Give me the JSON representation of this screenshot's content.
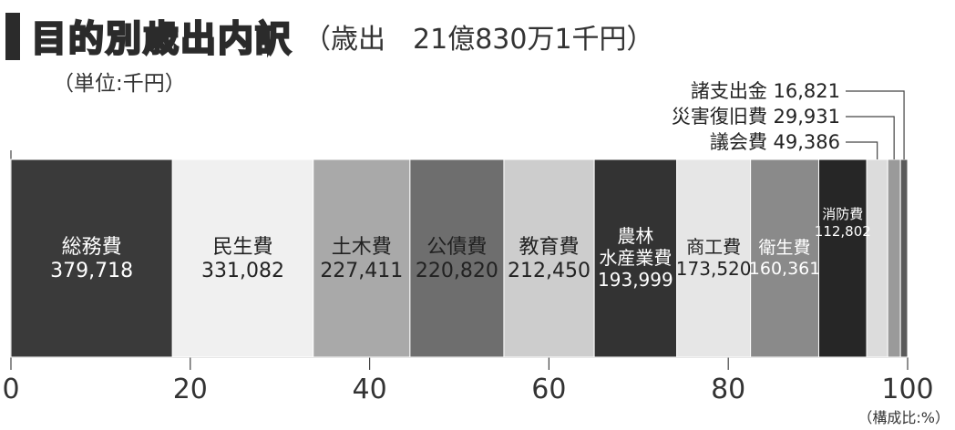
{
  "header": {
    "title": "目的別歳出内訳",
    "subtitle": "（歳出　21億830万1千円）",
    "unit": "（単位:千円）"
  },
  "chart_data": {
    "type": "bar",
    "orientation": "horizontal-stacked-100",
    "xlim": [
      0,
      100
    ],
    "xticks": [
      "0",
      "20",
      "40",
      "60",
      "80",
      "100"
    ],
    "xlabel": "（構成比:%）",
    "series": [
      {
        "name": "総務費",
        "value": 379718,
        "display": "379,718",
        "color": "#3a3a3a"
      },
      {
        "name": "民生費",
        "value": 331082,
        "display": "331,082",
        "color": "#f0f0f0"
      },
      {
        "name": "土木費",
        "value": 227411,
        "display": "227,411",
        "color": "#a9a9a9"
      },
      {
        "name": "公債費",
        "value": 220820,
        "display": "220,820",
        "color": "#6e6e6e"
      },
      {
        "name": "教育費",
        "value": 212450,
        "display": "212,450",
        "color": "#cdcdcd"
      },
      {
        "name": "農林\n水産業費",
        "value": 193999,
        "display": "193,999",
        "color": "#333333"
      },
      {
        "name": "商工費",
        "value": 173520,
        "display": "173,520",
        "color": "#e6e6e6"
      },
      {
        "name": "衛生費",
        "value": 160361,
        "display": "160,361",
        "color": "#8a8a8a"
      },
      {
        "name": "消防費",
        "value": 112802,
        "display": "112,802",
        "color": "#262626"
      },
      {
        "name": "議会費",
        "value": 49386,
        "display": "49,386",
        "color": "#dcdcdc"
      },
      {
        "name": "災害復旧費",
        "value": 29931,
        "display": "29,931",
        "color": "#9a9a9a"
      },
      {
        "name": "諸支出金",
        "value": 16821,
        "display": "16,821",
        "color": "#5a5a5a"
      }
    ]
  }
}
